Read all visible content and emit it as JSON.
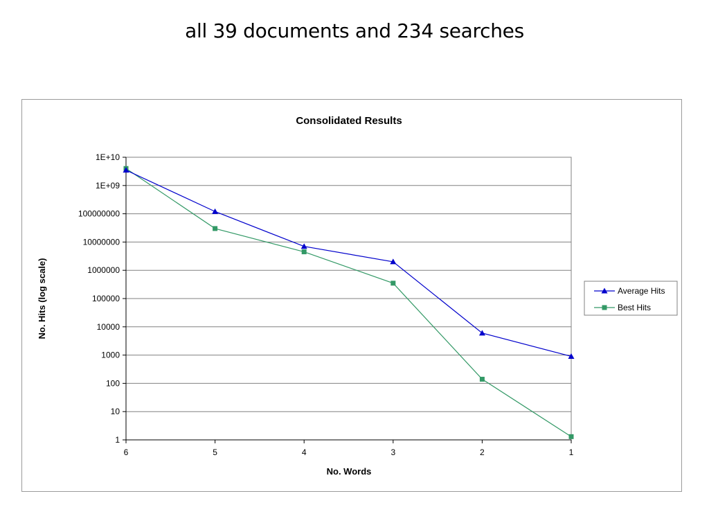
{
  "slide": {
    "title": "all 39 documents and 234 searches"
  },
  "chart_data": {
    "type": "line",
    "title": "Consolidated Results",
    "xlabel": "No. Words",
    "ylabel": "No. Hits (log scale)",
    "y_scale": "log",
    "ylim": [
      1,
      10000000000
    ],
    "y_tick_labels": [
      "1",
      "10",
      "100",
      "1000",
      "10000",
      "100000",
      "1000000",
      "10000000",
      "100000000",
      "1E+09",
      "1E+10"
    ],
    "categories": [
      "6",
      "5",
      "4",
      "3",
      "2",
      "1"
    ],
    "grid": "horizontal",
    "legend_position": "right",
    "series": [
      {
        "name": "Average Hits",
        "color": "#0000cc",
        "marker": "triangle",
        "values": [
          3500000000,
          120000000,
          7000000,
          2000000,
          6000,
          900
        ]
      },
      {
        "name": "Best Hits",
        "color": "#339966",
        "marker": "square",
        "values": [
          4000000000,
          30000000,
          4500000,
          350000,
          140,
          1.3
        ]
      }
    ]
  }
}
